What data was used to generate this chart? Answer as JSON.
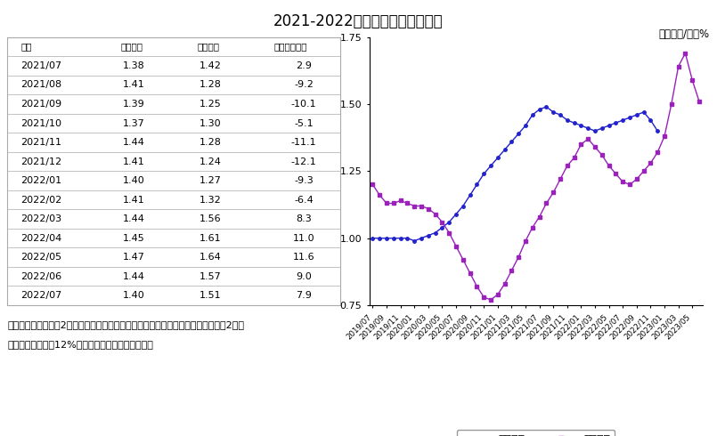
{
  "title": "2021-2022年国内外玉米价格走势",
  "unit_label": "单位：元/斤，%",
  "table_headers": [
    "月份",
    "国内价格",
    "国际价格",
    "国际比国内高"
  ],
  "table_data": [
    [
      "2021/07",
      "1.38",
      "1.42",
      "2.9"
    ],
    [
      "2021/08",
      "1.41",
      "1.28",
      "-9.2"
    ],
    [
      "2021/09",
      "1.39",
      "1.25",
      "-10.1"
    ],
    [
      "2021/10",
      "1.37",
      "1.30",
      "-5.1"
    ],
    [
      "2021/11",
      "1.44",
      "1.28",
      "-11.1"
    ],
    [
      "2021/12",
      "1.41",
      "1.24",
      "-12.1"
    ],
    [
      "2022/01",
      "1.40",
      "1.27",
      "-9.3"
    ],
    [
      "2022/02",
      "1.41",
      "1.32",
      "-6.4"
    ],
    [
      "2022/03",
      "1.44",
      "1.56",
      "8.3"
    ],
    [
      "2022/04",
      "1.45",
      "1.61",
      "11.0"
    ],
    [
      "2022/05",
      "1.47",
      "1.64",
      "11.6"
    ],
    [
      "2022/06",
      "1.44",
      "1.57",
      "9.0"
    ],
    [
      "2022/07",
      "1.40",
      "1.51",
      "7.9"
    ]
  ],
  "domestic_color": "#2222cc",
  "international_color": "#9922bb",
  "domestic_label": "国内价格",
  "international_label": "国际价格",
  "note_line1": "注：国内价格为东北2等黄玉米运到广州黄埔港的平仓价，国际价格为美国墨西哥湾2级黄",
  "note_line2": "玉米（蛋白质含量12%）运到黄埔港的到岸税后价。",
  "ylim": [
    0.75,
    1.75
  ],
  "yticks": [
    0.75,
    1.0,
    1.25,
    1.5,
    1.75
  ],
  "domestic_series": [
    1.0,
    1.0,
    1.0,
    1.0,
    1.0,
    1.0,
    0.99,
    1.0,
    1.01,
    1.02,
    1.04,
    1.06,
    1.09,
    1.12,
    1.16,
    1.2,
    1.24,
    1.27,
    1.3,
    1.33,
    1.36,
    1.39,
    1.42,
    1.46,
    1.48,
    1.49,
    1.47,
    1.46,
    1.44,
    1.43,
    1.42,
    1.41,
    1.4,
    1.41,
    1.42,
    1.43,
    1.44,
    1.45,
    1.46,
    1.47,
    1.44,
    1.4
  ],
  "international_series": [
    1.2,
    1.16,
    1.13,
    1.13,
    1.14,
    1.13,
    1.12,
    1.12,
    1.11,
    1.09,
    1.06,
    1.02,
    0.97,
    0.92,
    0.87,
    0.82,
    0.78,
    0.77,
    0.79,
    0.83,
    0.88,
    0.93,
    0.99,
    1.04,
    1.08,
    1.13,
    1.17,
    1.22,
    1.27,
    1.3,
    1.35,
    1.37,
    1.34,
    1.31,
    1.27,
    1.24,
    1.21,
    1.2,
    1.22,
    1.25,
    1.28,
    1.32,
    1.38,
    1.5,
    1.64,
    1.69,
    1.59,
    1.51
  ],
  "bg_color": "#ffffff",
  "border_color": "#aaaaaa"
}
